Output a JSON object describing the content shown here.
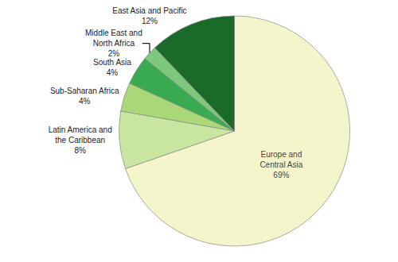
{
  "chart_data": {
    "type": "pie",
    "categories": [
      "Europe and\nCentral Asia",
      "Latin America and\nthe Caribbean",
      "Sub-Saharan Africa",
      "South Asia",
      "Middle East and\nNorth Africa",
      "East Asia and Pacific"
    ],
    "values": [
      69,
      8,
      4,
      4,
      2,
      12
    ],
    "value_labels": [
      "69%",
      "8%",
      "4%",
      "4%",
      "2%",
      "12%"
    ],
    "colors": [
      "#f5f5cc",
      "#c8e6a0",
      "#a8d878",
      "#3aaa50",
      "#7dc87a",
      "#1a6b2a"
    ],
    "data_labels": true
  }
}
